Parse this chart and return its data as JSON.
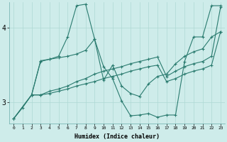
{
  "xlabel": "Humidex (Indice chaleur)",
  "bg_color": "#ceecea",
  "line_color": "#2a7b6f",
  "grid_color": "#aed8d4",
  "xlim": [
    -0.5,
    23.5
  ],
  "ylim": [
    2.72,
    4.35
  ],
  "yticks": [
    3,
    4
  ],
  "xticks": [
    0,
    1,
    2,
    3,
    4,
    5,
    6,
    7,
    8,
    9,
    10,
    11,
    12,
    13,
    14,
    15,
    16,
    17,
    18,
    19,
    20,
    21,
    22,
    23
  ],
  "lines": [
    {
      "x": [
        0,
        1,
        2,
        3,
        4,
        5,
        6,
        7,
        8,
        9,
        10,
        11,
        12,
        13,
        14,
        15,
        16,
        17,
        18,
        19,
        20,
        21,
        22,
        23
      ],
      "y": [
        2.78,
        2.93,
        3.1,
        3.55,
        3.58,
        3.62,
        3.88,
        4.3,
        4.32,
        3.85,
        3.48,
        3.32,
        3.02,
        2.82,
        2.83,
        2.85,
        2.8,
        2.83,
        2.83,
        3.55,
        3.88,
        3.88,
        4.3,
        4.3
      ]
    },
    {
      "x": [
        2,
        3,
        4,
        5,
        6,
        7,
        8,
        9,
        10,
        11,
        12,
        13,
        14,
        15,
        16,
        17,
        18,
        19,
        20,
        21,
        22,
        23
      ],
      "y": [
        3.1,
        3.56,
        3.58,
        3.6,
        3.62,
        3.65,
        3.7,
        3.85,
        3.3,
        3.5,
        3.22,
        3.12,
        3.08,
        3.25,
        3.35,
        3.38,
        3.52,
        3.62,
        3.68,
        3.72,
        3.88,
        3.95
      ]
    },
    {
      "x": [
        0,
        2,
        3,
        4,
        5,
        6,
        7,
        8,
        9,
        10,
        11,
        12,
        13,
        14,
        15,
        16,
        17,
        18,
        19,
        20,
        21,
        22,
        23
      ],
      "y": [
        2.78,
        3.1,
        3.1,
        3.15,
        3.18,
        3.22,
        3.28,
        3.32,
        3.38,
        3.42,
        3.45,
        3.48,
        3.52,
        3.55,
        3.58,
        3.61,
        3.35,
        3.42,
        3.48,
        3.52,
        3.55,
        3.62,
        4.28
      ]
    },
    {
      "x": [
        0,
        2,
        3,
        4,
        5,
        6,
        7,
        8,
        9,
        10,
        11,
        12,
        13,
        14,
        15,
        16,
        17,
        18,
        19,
        20,
        21,
        22,
        23
      ],
      "y": [
        2.78,
        3.1,
        3.1,
        3.12,
        3.15,
        3.18,
        3.22,
        3.25,
        3.28,
        3.32,
        3.35,
        3.38,
        3.42,
        3.45,
        3.48,
        3.5,
        3.28,
        3.32,
        3.38,
        3.42,
        3.45,
        3.5,
        3.95
      ]
    }
  ]
}
